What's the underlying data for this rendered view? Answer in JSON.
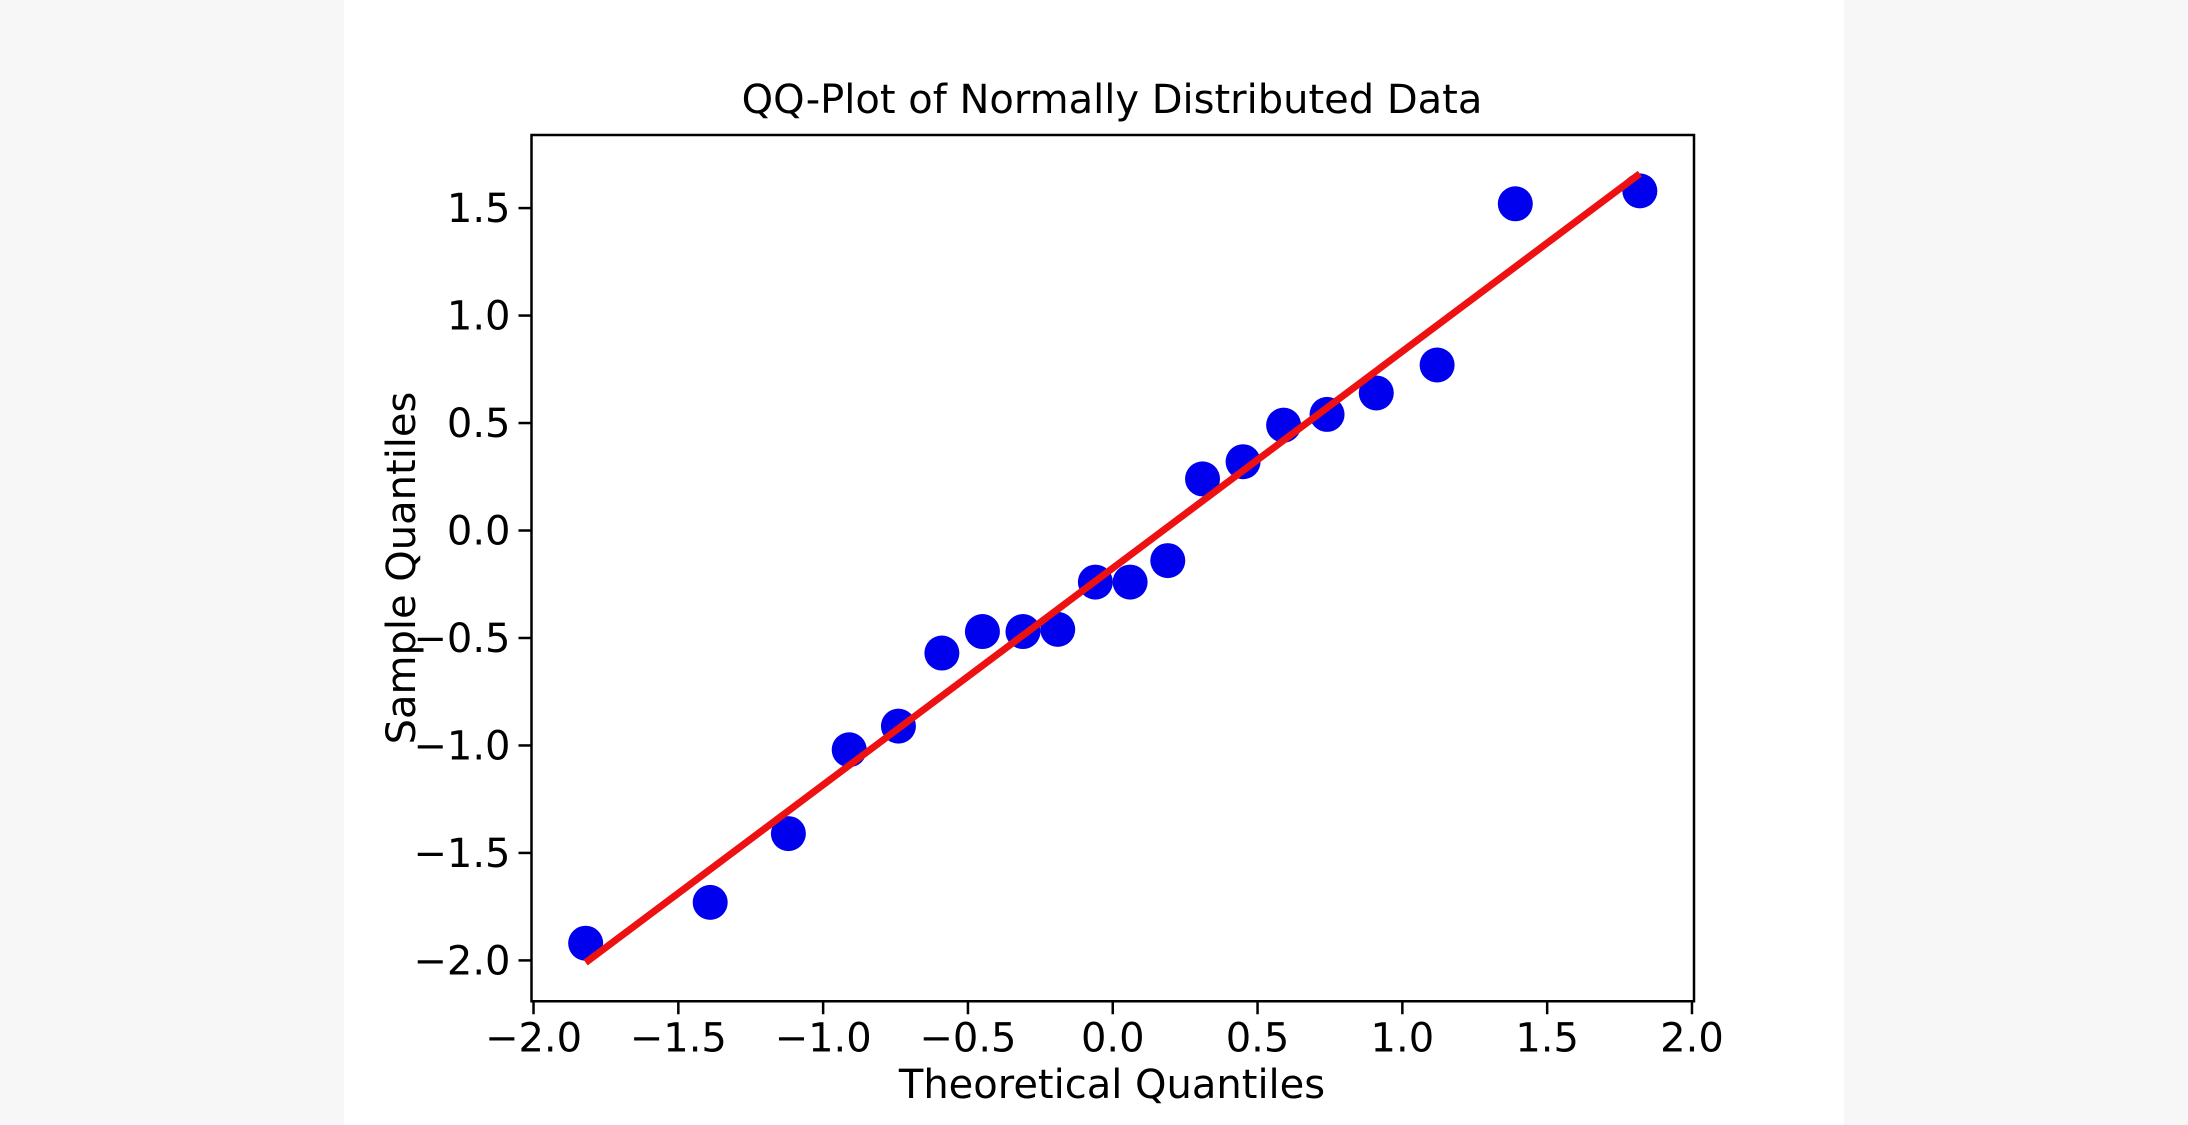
{
  "page": {
    "background_color": "#F8F7F8",
    "figure_background_color": "#FFFFFF",
    "axis_color": "#000000"
  },
  "chart_data": {
    "type": "scatter",
    "title": "QQ-Plot of Normally Distributed Data",
    "xlabel": "Theoretical Quantiles",
    "ylabel": "Sample Quantiles",
    "xlim": [
      -2.007,
      2.007
    ],
    "ylim": [
      -2.19,
      1.84
    ],
    "x_ticks": [
      -2.0,
      -1.5,
      -1.0,
      -0.5,
      0.0,
      0.5,
      1.0,
      1.5,
      2.0
    ],
    "y_ticks": [
      1.5,
      1.0,
      0.5,
      0.0,
      -0.5,
      -1.0,
      -1.5,
      -2.0
    ],
    "grid": false,
    "legend": "none",
    "series": [
      {
        "name": "sample-points",
        "type": "scatter",
        "color": "#0000EE",
        "x": [
          -1.82,
          -1.39,
          -1.12,
          -0.91,
          -0.74,
          -0.59,
          -0.45,
          -0.31,
          -0.19,
          -0.06,
          0.06,
          0.19,
          0.31,
          0.45,
          0.59,
          0.74,
          0.91,
          1.12,
          1.39,
          1.82
        ],
        "y": [
          -1.92,
          -1.73,
          -1.41,
          -1.02,
          -0.91,
          -0.57,
          -0.47,
          -0.47,
          -0.46,
          -0.24,
          -0.24,
          -0.14,
          0.24,
          0.32,
          0.49,
          0.54,
          0.64,
          0.77,
          1.52,
          1.58
        ]
      },
      {
        "name": "fit-line",
        "type": "line",
        "color": "#EE1111",
        "x": [
          -1.82,
          1.82
        ],
        "y": [
          -2.01,
          1.66
        ]
      }
    ]
  }
}
